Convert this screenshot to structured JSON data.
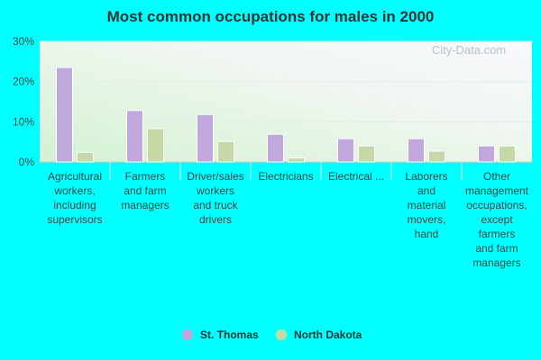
{
  "chart_data": {
    "type": "bar",
    "title": "Most common occupations for males in 2000",
    "xlabel": "",
    "ylabel": "",
    "ylim": [
      0,
      30
    ],
    "yticks": [
      0,
      10,
      20,
      30
    ],
    "ytick_labels": [
      "0%",
      "10%",
      "20%",
      "30%"
    ],
    "grid": true,
    "legend_position": "bottom-center",
    "categories": [
      [
        "Agricultural",
        "workers,",
        "including",
        "supervisors"
      ],
      [
        "Farmers",
        "and farm",
        "managers"
      ],
      [
        "Driver/sales",
        "workers",
        "and truck",
        "drivers"
      ],
      [
        "Electricians"
      ],
      [
        "Electrical ..."
      ],
      [
        "Laborers",
        "and",
        "material",
        "movers,",
        "hand"
      ],
      [
        "Other",
        "management",
        "occupations,",
        "except",
        "farmers",
        "and farm",
        "managers"
      ]
    ],
    "series": [
      {
        "name": "St. Thomas",
        "color": "#c0a8dc",
        "values": [
          23.5,
          12.8,
          11.8,
          6.9,
          5.8,
          5.8,
          4.0
        ]
      },
      {
        "name": "North Dakota",
        "color": "#c6d8a6",
        "values": [
          2.4,
          8.3,
          5.1,
          1.0,
          4.0,
          2.7,
          4.0
        ]
      }
    ],
    "watermark": "City-Data.com"
  }
}
